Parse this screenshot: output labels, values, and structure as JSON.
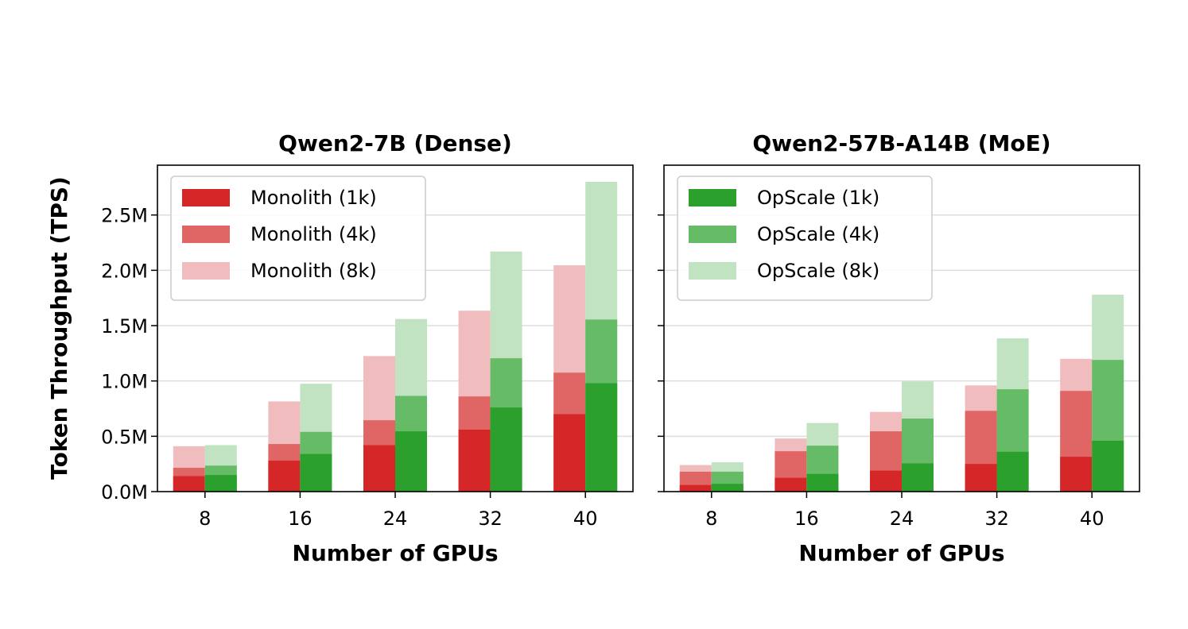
{
  "chart_data": [
    {
      "type": "bar",
      "title": "Qwen2-7B (Dense)",
      "xlabel": "Number of GPUs",
      "ylabel": "Token Throughput (TPS)",
      "categories": [
        "8",
        "16",
        "24",
        "32",
        "40"
      ],
      "ylim": [
        0,
        2950000
      ],
      "yticks": [
        "0.0M",
        "0.5M",
        "1.0M",
        "1.5M",
        "2.0M",
        "2.5M"
      ],
      "grid": "horizontal",
      "legend_position": "top-left",
      "groups": [
        {
          "name": "Monolith",
          "series": [
            {
              "name": "Monolith (1k)",
              "color": "#d62728",
              "values": [
                140000,
                280000,
                420000,
                560000,
                700000
              ]
            },
            {
              "name": "Monolith (4k)",
              "color": "#e06666",
              "values": [
                215000,
                430000,
                645000,
                860000,
                1075000
              ]
            },
            {
              "name": "Monolith (8k)",
              "color": "#f1bcbd",
              "values": [
                410000,
                815000,
                1225000,
                1635000,
                2045000
              ]
            }
          ]
        },
        {
          "name": "OpScale",
          "series": [
            {
              "name": "OpScale (1k)",
              "color": "#2ca02c",
              "values": [
                150000,
                340000,
                545000,
                760000,
                980000
              ]
            },
            {
              "name": "OpScale (4k)",
              "color": "#66bb66",
              "values": [
                235000,
                540000,
                865000,
                1205000,
                1555000
              ]
            },
            {
              "name": "OpScale (8k)",
              "color": "#c2e3c2",
              "values": [
                420000,
                975000,
                1560000,
                2170000,
                2800000
              ]
            }
          ]
        }
      ],
      "legend": [
        "Monolith (1k)",
        "Monolith (4k)",
        "Monolith (8k)"
      ]
    },
    {
      "type": "bar",
      "title": "Qwen2-57B-A14B (MoE)",
      "xlabel": "Number of GPUs",
      "categories": [
        "8",
        "16",
        "24",
        "32",
        "40"
      ],
      "ylim": [
        0,
        2950000
      ],
      "grid": "horizontal",
      "legend_position": "top-left",
      "groups": [
        {
          "name": "Monolith",
          "series": [
            {
              "name": "Monolith (1k)",
              "color": "#d62728",
              "values": [
                60000,
                125000,
                190000,
                250000,
                315000
              ]
            },
            {
              "name": "Monolith (4k)",
              "color": "#e06666",
              "values": [
                180000,
                365000,
                545000,
                730000,
                910000
              ]
            },
            {
              "name": "Monolith (8k)",
              "color": "#f1bcbd",
              "values": [
                240000,
                480000,
                720000,
                960000,
                1200000
              ]
            }
          ]
        },
        {
          "name": "OpScale",
          "series": [
            {
              "name": "OpScale (1k)",
              "color": "#2ca02c",
              "values": [
                70000,
                160000,
                255000,
                360000,
                460000
              ]
            },
            {
              "name": "OpScale (4k)",
              "color": "#66bb66",
              "values": [
                180000,
                415000,
                660000,
                925000,
                1190000
              ]
            },
            {
              "name": "OpScale (8k)",
              "color": "#c2e3c2",
              "values": [
                265000,
                620000,
                995000,
                1385000,
                1780000
              ]
            }
          ]
        }
      ],
      "legend": [
        "OpScale (1k)",
        "OpScale (4k)",
        "OpScale (8k)"
      ]
    }
  ]
}
